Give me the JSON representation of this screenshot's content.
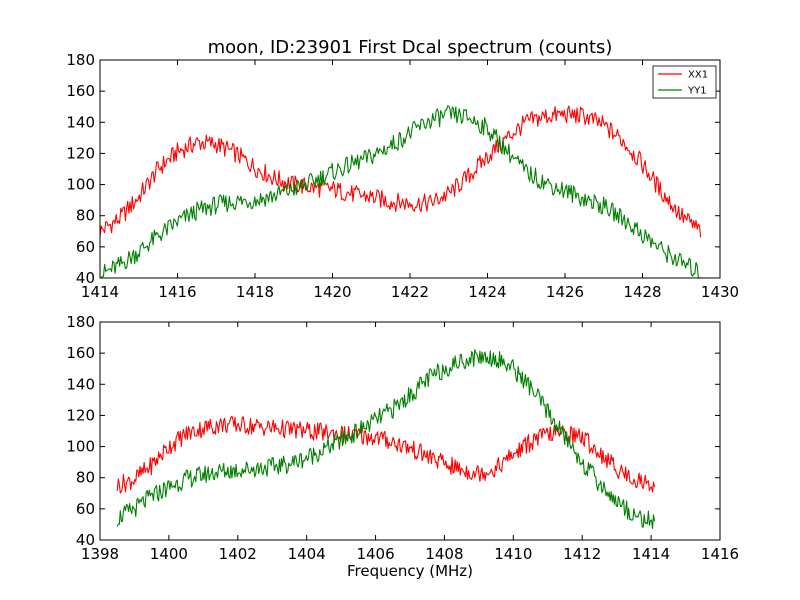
{
  "chart_data": [
    {
      "type": "line",
      "title": "moon, ID:23901 First Dcal spectrum (counts)",
      "xlabel": "",
      "ylabel": "",
      "xlim": [
        1414,
        1430
      ],
      "ylim": [
        40,
        180
      ],
      "xticks": [
        1414,
        1416,
        1418,
        1420,
        1422,
        1424,
        1426,
        1428,
        1430
      ],
      "yticks": [
        40,
        60,
        80,
        100,
        120,
        140,
        160,
        180
      ],
      "grid": false,
      "legend": "top-right",
      "series": [
        {
          "name": "XX1",
          "color": "#ff0000",
          "x": [
            1414.0,
            1414.5,
            1415.0,
            1415.5,
            1416.0,
            1416.5,
            1417.0,
            1417.5,
            1418.0,
            1418.5,
            1419.0,
            1419.5,
            1420.0,
            1420.5,
            1421.0,
            1421.5,
            1422.0,
            1422.5,
            1423.0,
            1423.5,
            1424.0,
            1424.5,
            1425.0,
            1425.5,
            1426.0,
            1426.5,
            1427.0,
            1427.5,
            1428.0,
            1428.5,
            1429.0,
            1429.5
          ],
          "y": [
            70,
            78,
            92,
            110,
            121,
            127,
            126,
            120,
            111,
            104,
            100,
            98,
            97,
            94,
            92,
            89,
            88,
            88,
            94,
            105,
            118,
            130,
            140,
            144,
            145,
            144,
            138,
            128,
            113,
            95,
            80,
            70
          ]
        },
        {
          "name": "YY1",
          "color": "#008000",
          "x": [
            1414.0,
            1414.5,
            1415.0,
            1415.5,
            1416.0,
            1416.5,
            1417.0,
            1417.5,
            1418.0,
            1418.5,
            1419.0,
            1419.5,
            1420.0,
            1420.5,
            1421.0,
            1421.5,
            1422.0,
            1422.5,
            1423.0,
            1423.5,
            1424.0,
            1424.5,
            1425.0,
            1425.5,
            1426.0,
            1426.5,
            1427.0,
            1427.5,
            1428.0,
            1428.5,
            1429.0,
            1429.5
          ],
          "y": [
            42,
            48,
            57,
            67,
            76,
            83,
            87,
            89,
            90,
            93,
            97,
            102,
            108,
            113,
            118,
            125,
            133,
            141,
            145,
            143,
            136,
            122,
            108,
            101,
            96,
            91,
            86,
            78,
            68,
            58,
            50,
            43
          ]
        }
      ]
    },
    {
      "type": "line",
      "title": "",
      "xlabel": "Frequency (MHz)",
      "ylabel": "",
      "xlim": [
        1398,
        1416
      ],
      "ylim": [
        40,
        180
      ],
      "xticks": [
        1398,
        1400,
        1402,
        1404,
        1406,
        1408,
        1410,
        1412,
        1414,
        1416
      ],
      "yticks": [
        40,
        60,
        80,
        100,
        120,
        140,
        160,
        180
      ],
      "grid": false,
      "series": [
        {
          "name": "XX1",
          "color": "#ff0000",
          "x": [
            1398.5,
            1399.0,
            1399.5,
            1400.0,
            1400.5,
            1401.0,
            1401.5,
            1402.0,
            1402.5,
            1403.0,
            1403.5,
            1404.0,
            1404.5,
            1405.0,
            1405.5,
            1406.0,
            1406.5,
            1407.0,
            1407.5,
            1408.0,
            1408.5,
            1409.0,
            1409.5,
            1410.0,
            1410.5,
            1411.0,
            1411.5,
            1412.0,
            1412.5,
            1413.0,
            1413.5,
            1414.1
          ],
          "y": [
            75,
            79,
            88,
            100,
            108,
            112,
            114,
            114,
            113,
            112,
            111,
            110,
            109,
            108,
            107,
            106,
            103,
            99,
            94,
            89,
            85,
            83,
            86,
            95,
            103,
            108,
            109,
            106,
            96,
            86,
            79,
            75
          ]
        },
        {
          "name": "YY1",
          "color": "#008000",
          "x": [
            1398.5,
            1399.0,
            1399.5,
            1400.0,
            1400.5,
            1401.0,
            1401.5,
            1402.0,
            1402.5,
            1403.0,
            1403.5,
            1404.0,
            1404.5,
            1405.0,
            1405.5,
            1406.0,
            1406.5,
            1407.0,
            1407.5,
            1408.0,
            1408.5,
            1409.0,
            1409.5,
            1410.0,
            1410.5,
            1411.0,
            1411.5,
            1412.0,
            1412.5,
            1413.0,
            1413.5,
            1414.1
          ],
          "y": [
            54,
            60,
            68,
            74,
            79,
            82,
            84,
            85,
            86,
            87,
            89,
            93,
            98,
            104,
            110,
            117,
            124,
            133,
            143,
            150,
            155,
            158,
            157,
            150,
            138,
            122,
            106,
            90,
            76,
            65,
            56,
            51
          ]
        }
      ]
    }
  ]
}
